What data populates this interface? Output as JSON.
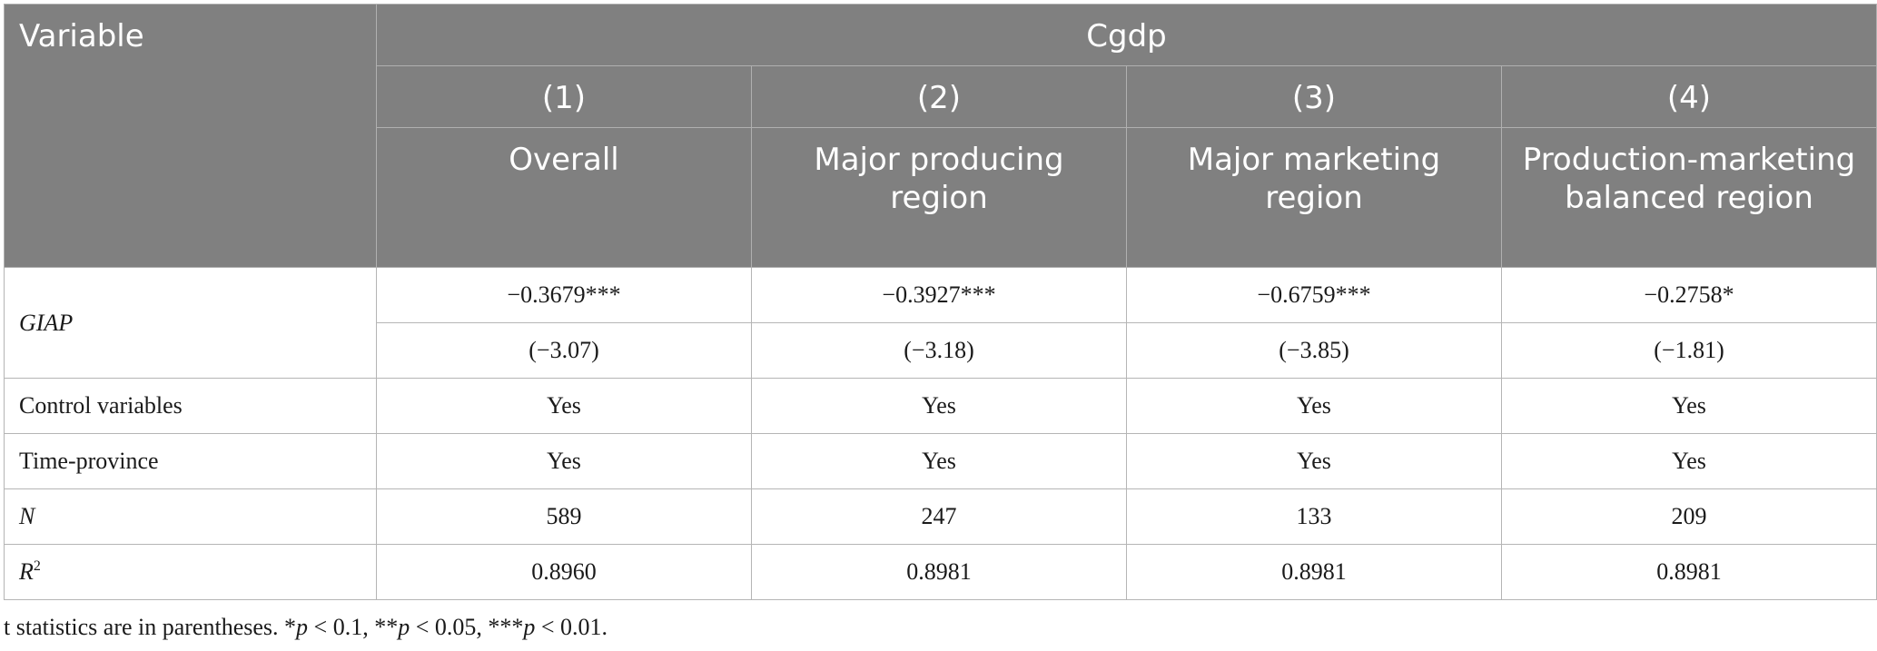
{
  "table": {
    "variable_header": "Variable",
    "dependent_variable": "Cgdp",
    "columns": [
      {
        "number": "(1)",
        "name": "Overall"
      },
      {
        "number": "(2)",
        "name": "Major producing region"
      },
      {
        "number": "(3)",
        "name": "Major marketing region"
      },
      {
        "number": "(4)",
        "name": "Production-marketing balanced region"
      }
    ],
    "rows": {
      "giap": {
        "label": "GIAP",
        "coefficients": [
          "−0.3679***",
          "−0.3927***",
          "−0.6759***",
          "−0.2758*"
        ],
        "t_stats": [
          "(−3.07)",
          "(−3.18)",
          "(−3.85)",
          "(−1.81)"
        ]
      },
      "control": {
        "label": "Control variables",
        "values": [
          "Yes",
          "Yes",
          "Yes",
          "Yes"
        ]
      },
      "time_province": {
        "label": "Time-province",
        "values": [
          "Yes",
          "Yes",
          "Yes",
          "Yes"
        ]
      },
      "n": {
        "label": "N",
        "values": [
          "589",
          "247",
          "133",
          "209"
        ]
      },
      "r2": {
        "label": "R",
        "label_sup": "2",
        "values": [
          "0.8960",
          "0.8981",
          "0.8981",
          "0.8981"
        ]
      }
    }
  },
  "footnote": {
    "t1": "t statistics are in parentheses. *",
    "p1": "p",
    "t2": " < 0.1, **",
    "p2": "p",
    "t3": " < 0.05, ***",
    "p3": "p",
    "t4": " < 0.01."
  }
}
